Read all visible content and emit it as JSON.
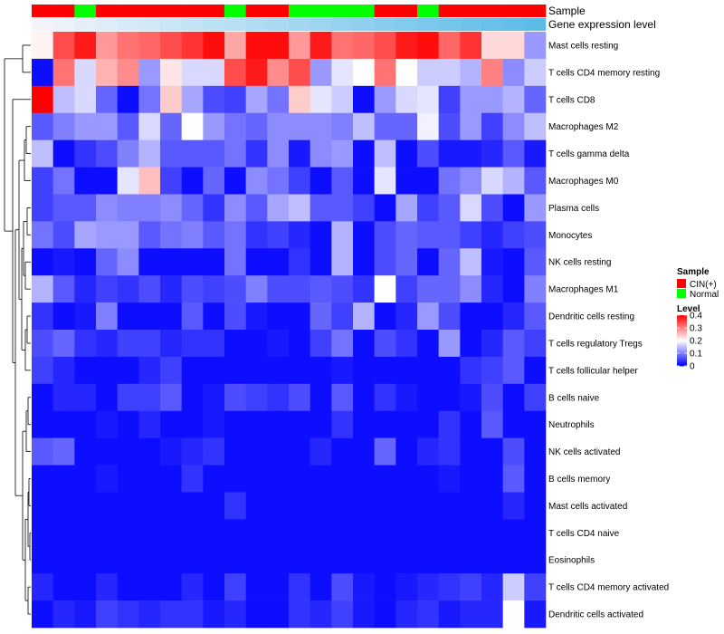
{
  "chart_data": {
    "type": "heatmap",
    "title": "",
    "annotation_tracks": [
      {
        "name": "Sample",
        "values": [
          "CIN(+)",
          "CIN(+)",
          "Normal",
          "CIN(+)",
          "CIN(+)",
          "CIN(+)",
          "CIN(+)",
          "CIN(+)",
          "CIN(+)",
          "Normal",
          "CIN(+)",
          "CIN(+)",
          "Normal",
          "Normal",
          "Normal",
          "Normal",
          "CIN(+)",
          "CIN(+)",
          "Normal",
          "CIN(+)",
          "CIN(+)",
          "CIN(+)",
          "CIN(+)",
          "CIN(+)"
        ]
      },
      {
        "name": "Gene expression level",
        "values": [
          0.02,
          0.04,
          0.06,
          0.08,
          0.1,
          0.12,
          0.14,
          0.16,
          0.18,
          0.2,
          0.22,
          0.24,
          0.26,
          0.28,
          0.3,
          0.32,
          0.34,
          0.36,
          0.38,
          0.4,
          0.42,
          0.44,
          0.46,
          0.48
        ]
      }
    ],
    "rows": [
      "Mast cells resting",
      "T cells CD4 memory resting",
      "T cells CD8",
      "Macrophages M2",
      "T cells gamma delta",
      "Macrophages M0",
      "Plasma cells",
      "Monocytes",
      "NK cells resting",
      "Macrophages M1",
      "Dendritic cells resting",
      "T cells regulatory  Tregs",
      "T cells follicular helper",
      "B cells naive",
      "Neutrophils",
      "NK cells activated",
      "B cells memory",
      "Mast cells activated",
      "T cells CD4 naive",
      "Eosinophils",
      "T cells CD4 memory activated",
      "Dendritic cells activated"
    ],
    "values": [
      [
        0.21,
        0.34,
        0.38,
        0.28,
        0.31,
        0.32,
        0.34,
        0.36,
        0.39,
        0.27,
        0.39,
        0.39,
        0.28,
        0.38,
        0.31,
        0.32,
        0.34,
        0.38,
        0.39,
        0.32,
        0.36,
        0.23,
        0.23,
        0.12
      ],
      [
        0.01,
        0.31,
        0.17,
        0.26,
        0.29,
        0.12,
        0.22,
        0.17,
        0.17,
        0.34,
        0.38,
        0.29,
        0.34,
        0.12,
        0.18,
        0.2,
        0.31,
        0.2,
        0.16,
        0.16,
        0.14,
        0.3,
        0.11,
        0.16
      ],
      [
        0.4,
        0.15,
        0.17,
        0.08,
        0.01,
        0.09,
        0.24,
        0.13,
        0.06,
        0.05,
        0.13,
        0.09,
        0.24,
        0.18,
        0.16,
        0.01,
        0.12,
        0.17,
        0.18,
        0.05,
        0.12,
        0.12,
        0.14,
        0.08
      ],
      [
        0.07,
        0.1,
        0.12,
        0.12,
        0.07,
        0.17,
        0.08,
        0.2,
        0.12,
        0.09,
        0.08,
        0.11,
        0.11,
        0.11,
        0.1,
        0.15,
        0.08,
        0.08,
        0.19,
        0.06,
        0.12,
        0.05,
        0.11,
        0.15
      ],
      [
        0.15,
        0.01,
        0.04,
        0.06,
        0.1,
        0.14,
        0.07,
        0.07,
        0.07,
        0.09,
        0.04,
        0.11,
        0.02,
        0.11,
        0.12,
        0.01,
        0.15,
        0.01,
        0.06,
        0.02,
        0.02,
        0.03,
        0.07,
        0.02
      ],
      [
        0.05,
        0.09,
        0.01,
        0.01,
        0.18,
        0.25,
        0.05,
        0.01,
        0.08,
        0.01,
        0.11,
        0.09,
        0.05,
        0.01,
        0.07,
        0.01,
        0.18,
        0.01,
        0.01,
        0.09,
        0.11,
        0.17,
        0.14,
        0.07
      ],
      [
        0.05,
        0.07,
        0.07,
        0.11,
        0.1,
        0.1,
        0.11,
        0.08,
        0.04,
        0.11,
        0.07,
        0.13,
        0.15,
        0.07,
        0.07,
        0.05,
        0.01,
        0.13,
        0.05,
        0.07,
        0.17,
        0.06,
        0.01,
        0.12
      ],
      [
        0.09,
        0.06,
        0.13,
        0.12,
        0.12,
        0.07,
        0.09,
        0.1,
        0.07,
        0.09,
        0.04,
        0.05,
        0.03,
        0.01,
        0.14,
        0.01,
        0.06,
        0.08,
        0.07,
        0.07,
        0.05,
        0.03,
        0.05,
        0.06
      ],
      [
        0.01,
        0.02,
        0.01,
        0.08,
        0.11,
        0.01,
        0.01,
        0.01,
        0.01,
        0.09,
        0.01,
        0.01,
        0.04,
        0.01,
        0.14,
        0.01,
        0.06,
        0.08,
        0.01,
        0.08,
        0.15,
        0.02,
        0.01,
        0.07
      ],
      [
        0.14,
        0.07,
        0.03,
        0.05,
        0.04,
        0.06,
        0.03,
        0.06,
        0.05,
        0.06,
        0.1,
        0.06,
        0.06,
        0.07,
        0.06,
        0.04,
        0.2,
        0.05,
        0.08,
        0.08,
        0.11,
        0.03,
        0.01,
        0.1
      ],
      [
        0.04,
        0.01,
        0.02,
        0.1,
        0.01,
        0.01,
        0.01,
        0.07,
        0.01,
        0.06,
        0.02,
        0.01,
        0.01,
        0.08,
        0.05,
        0.14,
        0.01,
        0.03,
        0.12,
        0.06,
        0.01,
        0.01,
        0.03,
        0.07
      ],
      [
        0.06,
        0.08,
        0.04,
        0.03,
        0.05,
        0.05,
        0.03,
        0.04,
        0.04,
        0.01,
        0.01,
        0.02,
        0.01,
        0.05,
        0.09,
        0.01,
        0.06,
        0.04,
        0.01,
        0.12,
        0.01,
        0.03,
        0.07,
        0.05
      ],
      [
        0.05,
        0.03,
        0.01,
        0.01,
        0.01,
        0.03,
        0.05,
        0.01,
        0.01,
        0.01,
        0.01,
        0.01,
        0.01,
        0.01,
        0.02,
        0.01,
        0.01,
        0.01,
        0.01,
        0.01,
        0.04,
        0.05,
        0.07,
        0.01
      ],
      [
        0.01,
        0.03,
        0.03,
        0.01,
        0.05,
        0.05,
        0.07,
        0.01,
        0.02,
        0.06,
        0.05,
        0.04,
        0.06,
        0.01,
        0.07,
        0.01,
        0.04,
        0.02,
        0.01,
        0.01,
        0.02,
        0.06,
        0.01,
        0.05
      ],
      [
        0.01,
        0.01,
        0.01,
        0.02,
        0.01,
        0.03,
        0.01,
        0.01,
        0.02,
        0.01,
        0.01,
        0.01,
        0.01,
        0.01,
        0.04,
        0.01,
        0.01,
        0.01,
        0.01,
        0.04,
        0.01,
        0.07,
        0.01,
        0.01
      ],
      [
        0.07,
        0.08,
        0.01,
        0.01,
        0.01,
        0.01,
        0.02,
        0.03,
        0.04,
        0.01,
        0.01,
        0.01,
        0.01,
        0.03,
        0.01,
        0.01,
        0.08,
        0.01,
        0.03,
        0.04,
        0.01,
        0.01,
        0.06,
        0.01
      ],
      [
        0.01,
        0.01,
        0.01,
        0.02,
        0.01,
        0.01,
        0.01,
        0.04,
        0.01,
        0.01,
        0.01,
        0.01,
        0.01,
        0.01,
        0.01,
        0.01,
        0.01,
        0.01,
        0.01,
        0.02,
        0.01,
        0.01,
        0.07,
        0.01
      ],
      [
        0.01,
        0.01,
        0.01,
        0.01,
        0.01,
        0.01,
        0.01,
        0.01,
        0.01,
        0.04,
        0.01,
        0.01,
        0.01,
        0.01,
        0.01,
        0.01,
        0.01,
        0.01,
        0.01,
        0.01,
        0.01,
        0.01,
        0.03,
        0.01
      ],
      [
        0.01,
        0.01,
        0.01,
        0.01,
        0.01,
        0.01,
        0.01,
        0.01,
        0.01,
        0.01,
        0.01,
        0.01,
        0.01,
        0.01,
        0.01,
        0.01,
        0.01,
        0.01,
        0.01,
        0.01,
        0.01,
        0.01,
        0.01,
        0.01
      ],
      [
        0.01,
        0.01,
        0.01,
        0.01,
        0.01,
        0.01,
        0.01,
        0.01,
        0.01,
        0.01,
        0.01,
        0.01,
        0.01,
        0.01,
        0.01,
        0.01,
        0.01,
        0.01,
        0.01,
        0.01,
        0.01,
        0.01,
        0.01,
        0.01
      ],
      [
        0.03,
        0.01,
        0.01,
        0.03,
        0.01,
        0.01,
        0.01,
        0.03,
        0.01,
        0.05,
        0.01,
        0.01,
        0.04,
        0.01,
        0.06,
        0.02,
        0.01,
        0.02,
        0.03,
        0.04,
        0.05,
        0.03,
        0.16,
        0.05
      ],
      [
        0.01,
        0.03,
        0.02,
        0.05,
        0.04,
        0.03,
        0.04,
        0.04,
        0.02,
        0.03,
        0.01,
        0.01,
        0.04,
        0.03,
        0.05,
        0.02,
        0.01,
        0.03,
        0.04,
        0.02,
        0.03,
        0.03,
        0.2,
        0.02
      ]
    ],
    "color_scale": {
      "min": 0,
      "max": 0.4,
      "low": "#0000ff",
      "mid": "#ffffff",
      "high": "#ff0000"
    },
    "legend": {
      "sample_title": "Sample",
      "sample_items": [
        {
          "label": "CIN(+)",
          "color": "#ff0000"
        },
        {
          "label": "Normal",
          "color": "#00ff00"
        }
      ],
      "level_title": "Level",
      "level_ticks": [
        "0.4",
        "0.3",
        "0.2",
        "0.1",
        "0"
      ],
      "level_tick_values": [
        0.4,
        0.3,
        0.2,
        0.1,
        0
      ]
    },
    "gene_expression_colors": {
      "low": "#f2f4fa",
      "high": "#5bbce8"
    },
    "legend_position": "right"
  }
}
